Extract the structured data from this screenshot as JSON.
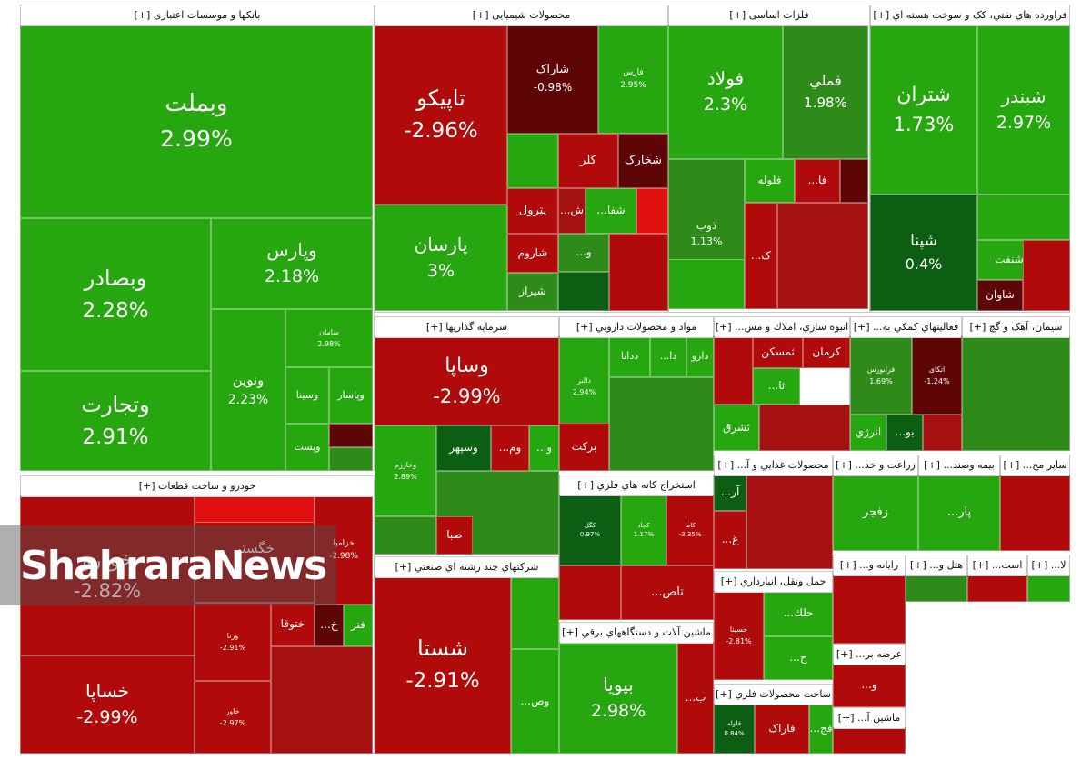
{
  "chart_data": {
    "type": "heatmap",
    "title": "",
    "colors": {
      "strong_green": "#27a70f",
      "green": "#2e8b1a",
      "dark_green": "#0c5e12",
      "strong_red": "#b00a0a",
      "red": "#a51010",
      "dark_red": "#5e0505",
      "bright_red": "#e01010"
    },
    "sectors": [
      {
        "name": "بانکها و موسسات اعتباری [+]",
        "symbols": [
          {
            "symbol": "وبملت",
            "change": "2.99%"
          },
          {
            "symbol": "وبصادر",
            "change": "2.28%"
          },
          {
            "symbol": "وپارس",
            "change": "2.18%"
          },
          {
            "symbol": "وتجارت",
            "change": "2.91%"
          },
          {
            "symbol": "ونوین",
            "change": "2.23%"
          },
          {
            "symbol": "سامان",
            "change": "2.98%"
          },
          {
            "symbol": "وسینا",
            "change": ""
          },
          {
            "symbol": "وپاسار",
            "change": ""
          },
          {
            "symbol": "وپست",
            "change": ""
          }
        ]
      },
      {
        "name": "محصولات شیمیایی [+]",
        "symbols": [
          {
            "symbol": "تاپیکو",
            "change": "-2.96%"
          },
          {
            "symbol": "شاراک",
            "change": "-0.98%"
          },
          {
            "symbol": "فارس",
            "change": "2.95%"
          },
          {
            "symbol": "پارسان",
            "change": "3%"
          },
          {
            "symbol": "کلر",
            "change": ""
          },
          {
            "symbol": "شخارک",
            "change": ""
          },
          {
            "symbol": "پترول",
            "change": ""
          },
          {
            "symbol": "ش...",
            "change": ""
          },
          {
            "symbol": "شفا...",
            "change": ""
          },
          {
            "symbol": "شاروم",
            "change": ""
          },
          {
            "symbol": "شیراز",
            "change": ""
          },
          {
            "symbol": "و...",
            "change": ""
          }
        ]
      },
      {
        "name": "فلزات اساسی [+]",
        "symbols": [
          {
            "symbol": "فولاد",
            "change": "2.3%"
          },
          {
            "symbol": "فملي",
            "change": "1.98%"
          },
          {
            "symbol": "ذوب",
            "change": "1.13%"
          },
          {
            "symbol": "فلوله",
            "change": ""
          },
          {
            "symbol": "فا...",
            "change": ""
          },
          {
            "symbol": "ک...",
            "change": ""
          }
        ]
      },
      {
        "name": "فراورده هاي نفتي، کک و سوخت هسته اي [+]",
        "symbols": [
          {
            "symbol": "شتران",
            "change": "1.73%"
          },
          {
            "symbol": "شبندر",
            "change": "2.97%"
          },
          {
            "symbol": "شپنا",
            "change": "0.4%"
          },
          {
            "symbol": "شنفت",
            "change": ""
          },
          {
            "symbol": "شاوان",
            "change": ""
          }
        ]
      },
      {
        "name": "خودرو و ساخت قطعات [+]",
        "symbols": [
          {
            "symbol": "خگستر",
            "change": ""
          },
          {
            "symbol": "خودرو",
            "change": "-2.82%"
          },
          {
            "symbol": "خزامیا",
            "change": "-2.98%"
          },
          {
            "symbol": "خساپا",
            "change": "-2.99%"
          },
          {
            "symbol": "ورنا",
            "change": "-2.91%"
          },
          {
            "symbol": "خاور",
            "change": "-2.97%"
          },
          {
            "symbol": "ختوقا",
            "change": ""
          },
          {
            "symbol": "خ...",
            "change": ""
          },
          {
            "symbol": "فنر",
            "change": ""
          }
        ]
      },
      {
        "name": "سرمايه گذاريها [+]",
        "symbols": [
          {
            "symbol": "وساپا",
            "change": "-2.99%"
          },
          {
            "symbol": "وسپهر",
            "change": ""
          },
          {
            "symbol": "وم...",
            "change": ""
          },
          {
            "symbol": "و...",
            "change": ""
          },
          {
            "symbol": "وخارزم",
            "change": "2.89%"
          },
          {
            "symbol": "صبا",
            "change": ""
          }
        ]
      },
      {
        "name": "مواد و محصولات دارويي [+]",
        "symbols": [
          {
            "symbol": "دارو",
            "change": ""
          },
          {
            "symbol": "دا...",
            "change": ""
          },
          {
            "symbol": "ددانا",
            "change": ""
          },
          {
            "symbol": "دالبر",
            "change": "2.94%"
          },
          {
            "symbol": "برکت",
            "change": ""
          }
        ]
      },
      {
        "name": "انبوه سازي، املاك و مس... [+]",
        "symbols": [
          {
            "symbol": "کرمان",
            "change": ""
          },
          {
            "symbol": "ثمسکن",
            "change": ""
          },
          {
            "symbol": "ثا...",
            "change": ""
          },
          {
            "symbol": "ثشرق",
            "change": ""
          }
        ]
      },
      {
        "name": "فعاليتهاي کمکي به... [+]",
        "symbols": [
          {
            "symbol": "فرابورس",
            "change": "1.69%"
          },
          {
            "symbol": "اتکای",
            "change": "-1.24%"
          },
          {
            "symbol": "انرژي",
            "change": ""
          },
          {
            "symbol": "بو...",
            "change": ""
          }
        ]
      },
      {
        "name": "سيمان، آهک و گچ [+]",
        "symbols": []
      },
      {
        "name": "استخراج کانه هاي فلزي [+]",
        "symbols": [
          {
            "symbol": "کگل",
            "change": "0.97%"
          },
          {
            "symbol": "کچاد",
            "change": "1.17%"
          },
          {
            "symbol": "کاما",
            "change": "-3.35%"
          },
          {
            "symbol": "تاص...",
            "change": ""
          }
        ]
      },
      {
        "name": "محصولات غذايي و آ... [+]",
        "symbols": [
          {
            "symbol": "آر...",
            "change": ""
          },
          {
            "symbol": "غ...",
            "change": ""
          }
        ]
      },
      {
        "name": "زراعت و خد... [+]",
        "symbols": [
          {
            "symbol": "زفجر",
            "change": ""
          }
        ]
      },
      {
        "name": "بيمه وصند... [+]",
        "symbols": [
          {
            "symbol": "پار...",
            "change": ""
          }
        ]
      },
      {
        "name": "ساير مح... [+]",
        "symbols": []
      },
      {
        "name": "شرکتهاي چند رشته اي صنعتي [+]",
        "symbols": [
          {
            "symbol": "شستا",
            "change": "-2.91%"
          },
          {
            "symbol": "وص...",
            "change": ""
          }
        ]
      },
      {
        "name": "ماشين آلات و دستگاههاي برقي [+]",
        "symbols": [
          {
            "symbol": "بپویا",
            "change": "2.98%"
          },
          {
            "symbol": "ب...",
            "change": ""
          }
        ]
      },
      {
        "name": "حمل ونقل، انبارداري [+]",
        "symbols": [
          {
            "symbol": "حسینا",
            "change": "-2.81%"
          },
          {
            "symbol": "حلك...",
            "change": ""
          },
          {
            "symbol": "ح...",
            "change": ""
          }
        ]
      },
      {
        "name": "ساخت محصولات فلزي [+]",
        "symbols": [
          {
            "symbol": "فاراک",
            "change": ""
          },
          {
            "symbol": "فلوله",
            "change": "0.84%"
          },
          {
            "symbol": "فج...",
            "change": ""
          }
        ]
      },
      {
        "name": "رايانه و... [+]",
        "symbols": []
      },
      {
        "name": "عرضه بر... [+]",
        "symbols": [
          {
            "symbol": "و...",
            "change": ""
          }
        ]
      },
      {
        "name": "ماشين آ... [+]",
        "symbols": []
      },
      {
        "name": "هتل و... [+]",
        "symbols": []
      },
      {
        "name": "است... [+]",
        "symbols": []
      },
      {
        "name": "لا... [+]",
        "symbols": []
      }
    ]
  },
  "watermark": "ShahraraNews"
}
